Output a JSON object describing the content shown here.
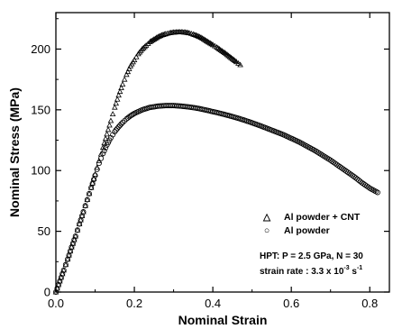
{
  "chart_data": {
    "type": "scatter",
    "xlabel": "Nominal Strain",
    "ylabel": "Nominal Stress (MPa)",
    "xlim": [
      0,
      0.85
    ],
    "ylim": [
      0,
      230
    ],
    "x_ticks": [
      0.0,
      0.2,
      0.4,
      0.6,
      0.8
    ],
    "x_tick_labels": [
      "0.0",
      "0.2",
      "0.4",
      "0.6",
      "0.8"
    ],
    "y_ticks": [
      0,
      50,
      100,
      150,
      200
    ],
    "y_tick_labels": [
      "0",
      "50",
      "100",
      "150",
      "200"
    ],
    "grid": false,
    "legend_position": "bottom-right",
    "series": [
      {
        "name": "Al powder + CNT",
        "marker": "triangle",
        "points": [
          [
            0.0,
            0
          ],
          [
            0.01,
            9
          ],
          [
            0.02,
            18
          ],
          [
            0.03,
            27
          ],
          [
            0.04,
            37
          ],
          [
            0.05,
            46
          ],
          [
            0.06,
            56
          ],
          [
            0.07,
            66
          ],
          [
            0.08,
            76
          ],
          [
            0.09,
            86
          ],
          [
            0.1,
            97
          ],
          [
            0.11,
            108
          ],
          [
            0.12,
            119
          ],
          [
            0.13,
            130
          ],
          [
            0.14,
            141
          ],
          [
            0.15,
            152
          ],
          [
            0.16,
            162
          ],
          [
            0.17,
            171
          ],
          [
            0.18,
            179
          ],
          [
            0.19,
            186
          ],
          [
            0.2,
            191
          ],
          [
            0.21,
            196
          ],
          [
            0.22,
            200
          ],
          [
            0.23,
            203
          ],
          [
            0.24,
            206
          ],
          [
            0.25,
            208
          ],
          [
            0.26,
            210
          ],
          [
            0.27,
            211.5
          ],
          [
            0.28,
            212.5
          ],
          [
            0.29,
            213.3
          ],
          [
            0.3,
            213.8
          ],
          [
            0.31,
            214
          ],
          [
            0.32,
            214
          ],
          [
            0.33,
            213.8
          ],
          [
            0.34,
            213.2
          ],
          [
            0.35,
            212.2
          ],
          [
            0.36,
            211
          ],
          [
            0.37,
            209.5
          ],
          [
            0.38,
            207.5
          ],
          [
            0.39,
            205.5
          ],
          [
            0.4,
            203.5
          ],
          [
            0.41,
            201.5
          ],
          [
            0.42,
            199.2
          ],
          [
            0.43,
            197
          ],
          [
            0.44,
            194.5
          ],
          [
            0.45,
            192
          ],
          [
            0.46,
            189.5
          ],
          [
            0.47,
            187
          ]
        ]
      },
      {
        "name": "Al powder",
        "marker": "circle",
        "points": [
          [
            0.0,
            0
          ],
          [
            0.01,
            9
          ],
          [
            0.02,
            18
          ],
          [
            0.03,
            27
          ],
          [
            0.04,
            37
          ],
          [
            0.05,
            46
          ],
          [
            0.06,
            56
          ],
          [
            0.07,
            66
          ],
          [
            0.08,
            76
          ],
          [
            0.09,
            86
          ],
          [
            0.1,
            96
          ],
          [
            0.11,
            106
          ],
          [
            0.12,
            114
          ],
          [
            0.13,
            121
          ],
          [
            0.14,
            127
          ],
          [
            0.15,
            132
          ],
          [
            0.16,
            136
          ],
          [
            0.17,
            139.5
          ],
          [
            0.18,
            142.5
          ],
          [
            0.19,
            145
          ],
          [
            0.2,
            147
          ],
          [
            0.22,
            150
          ],
          [
            0.24,
            152
          ],
          [
            0.26,
            153
          ],
          [
            0.28,
            153.5
          ],
          [
            0.3,
            153.5
          ],
          [
            0.32,
            153
          ],
          [
            0.34,
            152.3
          ],
          [
            0.36,
            151.3
          ],
          [
            0.38,
            150
          ],
          [
            0.4,
            148.5
          ],
          [
            0.42,
            147
          ],
          [
            0.44,
            145.3
          ],
          [
            0.46,
            143.5
          ],
          [
            0.48,
            141.5
          ],
          [
            0.5,
            139.3
          ],
          [
            0.52,
            137
          ],
          [
            0.54,
            134.5
          ],
          [
            0.56,
            132
          ],
          [
            0.58,
            129.5
          ],
          [
            0.6,
            126.5
          ],
          [
            0.62,
            123.5
          ],
          [
            0.64,
            120
          ],
          [
            0.66,
            116.5
          ],
          [
            0.68,
            112.5
          ],
          [
            0.7,
            108.5
          ],
          [
            0.72,
            104
          ],
          [
            0.74,
            99.5
          ],
          [
            0.76,
            95
          ],
          [
            0.78,
            90
          ],
          [
            0.8,
            85.5
          ],
          [
            0.82,
            82
          ]
        ]
      }
    ],
    "legend": [
      {
        "symbol": "△",
        "label": "Al powder + CNT"
      },
      {
        "symbol": "○",
        "label": "Al powder"
      }
    ],
    "annotation": {
      "line1": "HPT: P = 2.5 GPa, N = 30",
      "line2_prefix": "strain rate : 3.3 x 10",
      "line2_exp1": "-3",
      "line2_mid": " s",
      "line2_exp2": "-1"
    }
  }
}
